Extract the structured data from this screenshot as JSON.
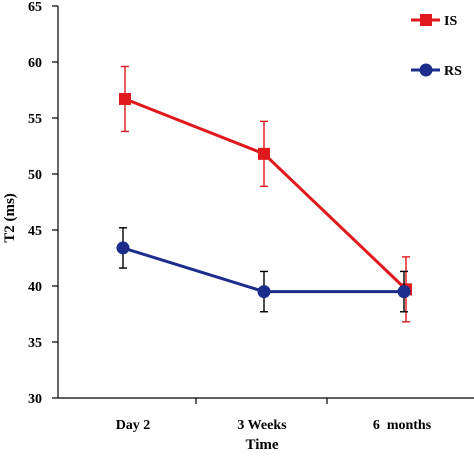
{
  "chart_data": {
    "type": "line",
    "xlabel": "Time",
    "ylabel": "T2 (ms)",
    "categories": [
      "Day 2",
      "3 Weeks",
      "6  months"
    ],
    "ylim": [
      30,
      65
    ],
    "yticks": [
      30,
      35,
      40,
      45,
      50,
      55,
      60,
      65
    ],
    "grid": false,
    "legend_position": "top-right",
    "error_bars": true,
    "series": [
      {
        "name": "IS",
        "color": "#e0191f",
        "marker": "square",
        "values": [
          56.7,
          51.8,
          39.7
        ],
        "error": [
          2.9,
          2.9,
          2.9
        ]
      },
      {
        "name": "RS",
        "color": "#1c2d8c",
        "marker": "circle",
        "values": [
          43.4,
          39.5,
          39.5
        ],
        "error": [
          1.8,
          1.8,
          1.8
        ]
      }
    ]
  }
}
